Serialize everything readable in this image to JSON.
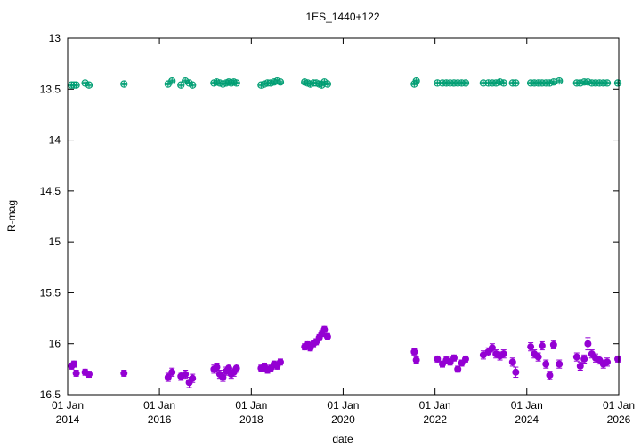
{
  "chart_data": {
    "type": "scatter",
    "title": "1ES_1440+122",
    "xlabel": "date",
    "ylabel": "R-mag",
    "x_type": "date",
    "xlim": [
      "2014-01-01",
      "2026-01-01"
    ],
    "ylim": [
      16.5,
      13
    ],
    "y_inverted": true,
    "grid": false,
    "yticks": [
      13,
      13.5,
      14,
      14.5,
      15,
      15.5,
      16,
      16.5
    ],
    "ytick_labels": [
      "13",
      "13.5",
      "14",
      "14.5",
      "15",
      "15.5",
      "16",
      "16.5"
    ],
    "xticks": [
      {
        "date": "2014-01-01",
        "line1": "01 Jan",
        "line2": "2014"
      },
      {
        "date": "2016-01-01",
        "line1": "01 Jan",
        "line2": "2016"
      },
      {
        "date": "2018-01-01",
        "line1": "01 Jan",
        "line2": "2018"
      },
      {
        "date": "2020-01-01",
        "line1": "01 Jan",
        "line2": "2020"
      },
      {
        "date": "2022-01-01",
        "line1": "01 Jan",
        "line2": "2022"
      },
      {
        "date": "2024-01-01",
        "line1": "01 Jan",
        "line2": "2024"
      },
      {
        "date": "2026-01-01",
        "line1": "01 Jan",
        "line2": "2026"
      }
    ],
    "series": [
      {
        "color": "#009e73",
        "marker": "open-circle-plus",
        "points": [
          [
            "2014-02-01",
            13.46,
            0.01
          ],
          [
            "2014-02-20",
            13.46,
            0.01
          ],
          [
            "2014-03-10",
            13.46,
            0.01
          ],
          [
            "2014-05-20",
            13.44,
            0.01
          ],
          [
            "2014-06-20",
            13.46,
            0.01
          ],
          [
            "2015-03-25",
            13.45,
            0.01
          ],
          [
            "2016-03-10",
            13.45,
            0.01
          ],
          [
            "2016-04-10",
            13.42,
            0.01
          ],
          [
            "2016-06-20",
            13.46,
            0.01
          ],
          [
            "2016-07-25",
            13.42,
            0.01
          ],
          [
            "2016-08-25",
            13.44,
            0.01
          ],
          [
            "2016-09-20",
            13.46,
            0.01
          ],
          [
            "2017-03-10",
            13.44,
            0.01
          ],
          [
            "2017-04-01",
            13.43,
            0.01
          ],
          [
            "2017-04-25",
            13.44,
            0.01
          ],
          [
            "2017-05-20",
            13.45,
            0.01
          ],
          [
            "2017-06-15",
            13.44,
            0.01
          ],
          [
            "2017-07-05",
            13.43,
            0.01
          ],
          [
            "2017-07-25",
            13.44,
            0.01
          ],
          [
            "2017-08-15",
            13.43,
            0.01
          ],
          [
            "2017-09-05",
            13.44,
            0.01
          ],
          [
            "2018-03-20",
            13.46,
            0.01
          ],
          [
            "2018-04-15",
            13.45,
            0.01
          ],
          [
            "2018-05-10",
            13.44,
            0.01
          ],
          [
            "2018-06-05",
            13.44,
            0.01
          ],
          [
            "2018-07-01",
            13.43,
            0.01
          ],
          [
            "2018-07-25",
            13.42,
            0.01
          ],
          [
            "2018-08-20",
            13.43,
            0.01
          ],
          [
            "2019-03-01",
            13.43,
            0.01
          ],
          [
            "2019-03-25",
            13.44,
            0.01
          ],
          [
            "2019-04-15",
            13.45,
            0.01
          ],
          [
            "2019-05-10",
            13.44,
            0.01
          ],
          [
            "2019-06-01",
            13.44,
            0.01
          ],
          [
            "2019-06-25",
            13.45,
            0.01
          ],
          [
            "2019-07-15",
            13.46,
            0.01
          ],
          [
            "2019-08-05",
            13.43,
            0.01
          ],
          [
            "2019-08-30",
            13.45,
            0.01
          ],
          [
            "2021-07-20",
            13.45,
            0.01
          ],
          [
            "2021-08-05",
            13.42,
            0.01
          ],
          [
            "2022-01-20",
            13.44,
            0.01
          ],
          [
            "2022-03-01",
            13.44,
            0.01
          ],
          [
            "2022-04-01",
            13.44,
            0.01
          ],
          [
            "2022-05-01",
            13.44,
            0.01
          ],
          [
            "2022-06-01",
            13.44,
            0.01
          ],
          [
            "2022-07-01",
            13.44,
            0.01
          ],
          [
            "2022-08-01",
            13.44,
            0.01
          ],
          [
            "2022-09-01",
            13.44,
            0.01
          ],
          [
            "2023-01-20",
            13.44,
            0.01
          ],
          [
            "2023-03-01",
            13.44,
            0.01
          ],
          [
            "2023-04-01",
            13.44,
            0.01
          ],
          [
            "2023-05-01",
            13.44,
            0.01
          ],
          [
            "2023-06-01",
            13.43,
            0.01
          ],
          [
            "2023-07-01",
            13.44,
            0.01
          ],
          [
            "2023-09-10",
            13.44,
            0.01
          ],
          [
            "2023-10-05",
            13.44,
            0.01
          ],
          [
            "2024-02-01",
            13.44,
            0.01
          ],
          [
            "2024-03-01",
            13.44,
            0.01
          ],
          [
            "2024-04-01",
            13.44,
            0.01
          ],
          [
            "2024-05-01",
            13.44,
            0.01
          ],
          [
            "2024-06-01",
            13.44,
            0.01
          ],
          [
            "2024-07-01",
            13.44,
            0.01
          ],
          [
            "2024-08-01",
            13.43,
            0.01
          ],
          [
            "2024-09-15",
            13.42,
            0.01
          ],
          [
            "2025-02-01",
            13.44,
            0.01
          ],
          [
            "2025-03-01",
            13.44,
            0.01
          ],
          [
            "2025-04-01",
            13.43,
            0.01
          ],
          [
            "2025-05-01",
            13.43,
            0.01
          ],
          [
            "2025-06-01",
            13.44,
            0.01
          ],
          [
            "2025-07-01",
            13.44,
            0.01
          ],
          [
            "2025-08-01",
            13.44,
            0.01
          ],
          [
            "2025-09-01",
            13.44,
            0.01
          ],
          [
            "2025-10-01",
            13.44,
            0.01
          ],
          [
            "2026-02-01",
            13.44,
            0.01
          ],
          [
            "2026-03-01",
            13.44,
            0.01
          ]
        ]
      },
      {
        "color": "#9400d3",
        "marker": "filled-circle",
        "points": [
          [
            "2014-02-01",
            16.22,
            0.03
          ],
          [
            "2014-02-20",
            16.2,
            0.03
          ],
          [
            "2014-03-10",
            16.29,
            0.03
          ],
          [
            "2014-05-20",
            16.28,
            0.03
          ],
          [
            "2014-06-20",
            16.3,
            0.03
          ],
          [
            "2015-03-25",
            16.29,
            0.03
          ],
          [
            "2016-03-10",
            16.33,
            0.04
          ],
          [
            "2016-04-10",
            16.28,
            0.04
          ],
          [
            "2016-06-20",
            16.32,
            0.04
          ],
          [
            "2016-07-25",
            16.3,
            0.04
          ],
          [
            "2016-08-25",
            16.38,
            0.05
          ],
          [
            "2016-09-20",
            16.34,
            0.04
          ],
          [
            "2017-03-10",
            16.25,
            0.04
          ],
          [
            "2017-04-01",
            16.23,
            0.04
          ],
          [
            "2017-04-25",
            16.3,
            0.04
          ],
          [
            "2017-05-20",
            16.33,
            0.04
          ],
          [
            "2017-06-15",
            16.27,
            0.04
          ],
          [
            "2017-07-05",
            16.24,
            0.04
          ],
          [
            "2017-07-25",
            16.3,
            0.04
          ],
          [
            "2017-08-15",
            16.28,
            0.04
          ],
          [
            "2017-09-05",
            16.24,
            0.04
          ],
          [
            "2018-03-20",
            16.24,
            0.03
          ],
          [
            "2018-04-15",
            16.22,
            0.03
          ],
          [
            "2018-05-10",
            16.26,
            0.03
          ],
          [
            "2018-06-05",
            16.24,
            0.03
          ],
          [
            "2018-07-01",
            16.2,
            0.03
          ],
          [
            "2018-07-25",
            16.22,
            0.03
          ],
          [
            "2018-08-20",
            16.18,
            0.03
          ],
          [
            "2019-03-01",
            16.03,
            0.03
          ],
          [
            "2019-03-25",
            16.01,
            0.03
          ],
          [
            "2019-04-15",
            16.04,
            0.03
          ],
          [
            "2019-05-10",
            16.0,
            0.03
          ],
          [
            "2019-06-01",
            15.98,
            0.03
          ],
          [
            "2019-06-25",
            15.94,
            0.03
          ],
          [
            "2019-07-15",
            15.9,
            0.03
          ],
          [
            "2019-08-05",
            15.86,
            0.03
          ],
          [
            "2019-08-30",
            15.93,
            0.03
          ],
          [
            "2021-07-20",
            16.08,
            0.03
          ],
          [
            "2021-08-05",
            16.16,
            0.03
          ],
          [
            "2022-01-20",
            16.15,
            0.03
          ],
          [
            "2022-03-01",
            16.2,
            0.03
          ],
          [
            "2022-04-01",
            16.16,
            0.03
          ],
          [
            "2022-05-01",
            16.18,
            0.03
          ],
          [
            "2022-06-01",
            16.14,
            0.03
          ],
          [
            "2022-07-01",
            16.25,
            0.03
          ],
          [
            "2022-08-01",
            16.19,
            0.03
          ],
          [
            "2022-09-01",
            16.15,
            0.03
          ],
          [
            "2023-01-20",
            16.11,
            0.04
          ],
          [
            "2023-03-01",
            16.08,
            0.04
          ],
          [
            "2023-04-01",
            16.04,
            0.04
          ],
          [
            "2023-05-01",
            16.1,
            0.04
          ],
          [
            "2023-06-01",
            16.12,
            0.04
          ],
          [
            "2023-07-01",
            16.1,
            0.04
          ],
          [
            "2023-09-10",
            16.18,
            0.04
          ],
          [
            "2023-10-05",
            16.28,
            0.05
          ],
          [
            "2024-02-01",
            16.03,
            0.04
          ],
          [
            "2024-03-01",
            16.1,
            0.04
          ],
          [
            "2024-04-01",
            16.13,
            0.04
          ],
          [
            "2024-05-01",
            16.02,
            0.04
          ],
          [
            "2024-06-01",
            16.2,
            0.04
          ],
          [
            "2024-07-01",
            16.31,
            0.04
          ],
          [
            "2024-08-01",
            16.01,
            0.04
          ],
          [
            "2024-09-15",
            16.2,
            0.04
          ],
          [
            "2025-02-01",
            16.13,
            0.04
          ],
          [
            "2025-03-01",
            16.22,
            0.04
          ],
          [
            "2025-04-01",
            16.15,
            0.04
          ],
          [
            "2025-05-01",
            16.0,
            0.06
          ],
          [
            "2025-06-01",
            16.1,
            0.04
          ],
          [
            "2025-07-01",
            16.14,
            0.04
          ],
          [
            "2025-08-01",
            16.16,
            0.04
          ],
          [
            "2025-09-01",
            16.2,
            0.04
          ],
          [
            "2025-10-01",
            16.18,
            0.04
          ],
          [
            "2026-02-01",
            16.15,
            0.03
          ],
          [
            "2026-03-01",
            16.22,
            0.03
          ]
        ]
      }
    ]
  }
}
